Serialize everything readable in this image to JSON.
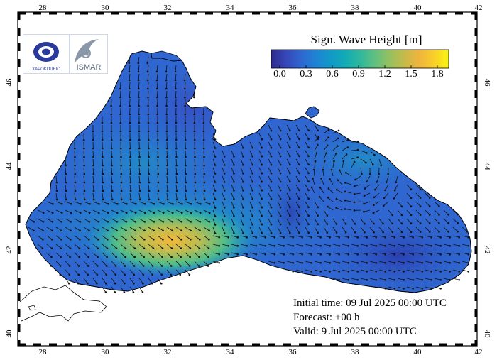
{
  "map": {
    "title": "Sign. Wave Height [m]",
    "colorbar": {
      "ticks": [
        "0.0",
        "0.3",
        "0.6",
        "0.9",
        "1.2",
        "1.5",
        "1.8"
      ],
      "colors": [
        "#2c2a8c",
        "#3747b8",
        "#2f66d0",
        "#1f83d4",
        "#1299c8",
        "#12abb4",
        "#2fb89c",
        "#5fc080",
        "#95c05f",
        "#c5ba49",
        "#efb43e",
        "#f9cf2a",
        "#f9f50f"
      ]
    },
    "longitude_labels": [
      "28",
      "30",
      "32",
      "34",
      "36",
      "38",
      "40",
      "42"
    ],
    "latitude_labels": [
      "40",
      "42",
      "44",
      "46"
    ],
    "info": {
      "initial": "Initial time: 09 Jul 2025 00:00 UTC",
      "forecast": "Forecast: +00 h",
      "valid": "Valid:  9 Jul 2025 00:00 UTC"
    },
    "logos": {
      "left_text": "ΧΑΡΟΚΟΠΕΙΟ",
      "right_text": "ΙSMAR"
    },
    "colors": {
      "sea_base": "#2f66d0",
      "sea_high": "#efb43e",
      "land": "#ffffff",
      "coast": "#000000"
    }
  }
}
